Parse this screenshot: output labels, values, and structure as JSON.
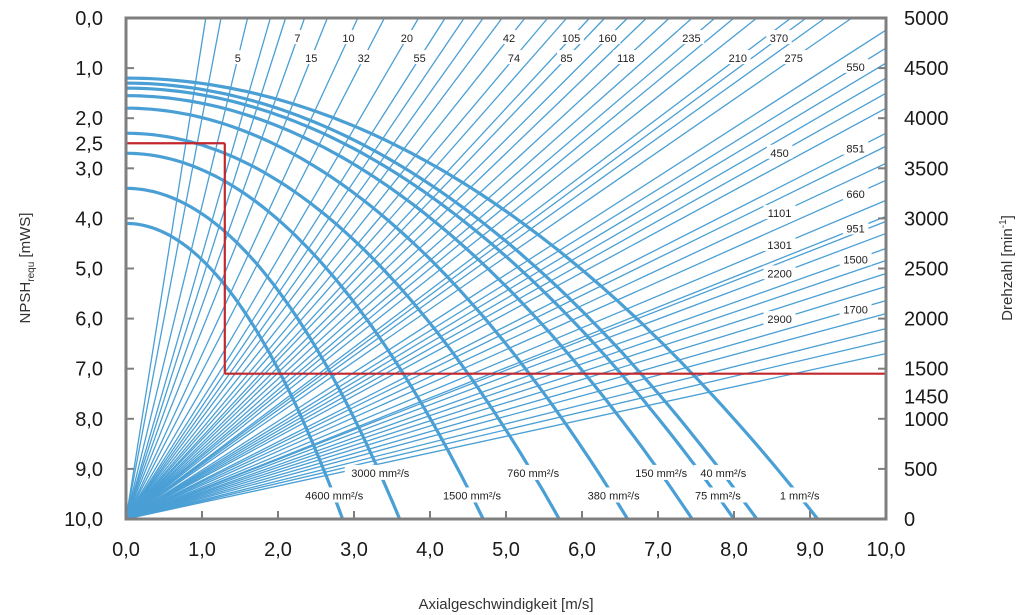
{
  "chart_data": {
    "type": "line",
    "xlabel": "Axialgeschwindigkeit [m/s]",
    "ylabel_left": {
      "main": "NPSH",
      "sub": "requ",
      "tail": " [mWS]"
    },
    "ylabel_right": {
      "main": "Drehzahl [min",
      "sup": "-1",
      "tail": "]"
    },
    "xlim": [
      0,
      10
    ],
    "ylim_left": [
      10,
      0
    ],
    "ylim_right": [
      0,
      5000
    ],
    "x_ticks": [
      "0,0",
      "1,0",
      "2,0",
      "3,0",
      "4,0",
      "5,0",
      "6,0",
      "7,0",
      "8,0",
      "9,0",
      "10,0"
    ],
    "y_left_ticks": [
      "0,0",
      "1,0",
      "2,0",
      "3,0",
      "4,0",
      "5,0",
      "6,0",
      "7,0",
      "8,0",
      "9,0",
      "10,0"
    ],
    "y_right_ticks": [
      "5000",
      "4500",
      "4000",
      "3500",
      "3000",
      "2500",
      "2000",
      "1500",
      "1000",
      "500",
      "0"
    ],
    "viscosity_curves": [
      {
        "name": "4600 mm²/s",
        "npsh0": 5.9,
        "x_at_10": 2.85
      },
      {
        "name": "3000 mm²/s",
        "npsh0": 6.6,
        "x_at_10": 3.6
      },
      {
        "name": "1500 mm²/s",
        "npsh0": 7.3,
        "x_at_10": 4.7
      },
      {
        "name": "760 mm²/s",
        "npsh0": 7.7,
        "x_at_10": 5.7
      },
      {
        "name": "380 mm²/s",
        "npsh0": 8.2,
        "x_at_10": 6.6
      },
      {
        "name": "150 mm²/s",
        "npsh0": 8.45,
        "x_at_10": 7.45
      },
      {
        "name": "75 mm²/s",
        "npsh0": 8.6,
        "x_at_10": 8.0
      },
      {
        "name": "40 mm²/s",
        "npsh0": 8.7,
        "x_at_10": 8.3
      },
      {
        "name": "1 mm²/s",
        "npsh0": 8.8,
        "x_at_10": 9.1
      }
    ],
    "rpm_rays_top": [
      {
        "label": "5",
        "x_at_top": 1.6
      },
      {
        "label": "7",
        "x_at_top": 2.35
      },
      {
        "label": "15",
        "x_at_top": 2.65
      },
      {
        "label": "10",
        "x_at_top": 3.05
      },
      {
        "label": "32",
        "x_at_top": 3.4
      },
      {
        "label": "20",
        "x_at_top": 3.85
      },
      {
        "label": "55",
        "x_at_top": 4.2
      },
      {
        "label": "42",
        "x_at_top": 5.25
      },
      {
        "label": "74",
        "x_at_top": 5.55
      },
      {
        "label": "105",
        "x_at_top": 6.1
      },
      {
        "label": "85",
        "x_at_top": 6.3
      },
      {
        "label": "160",
        "x_at_top": 6.6
      },
      {
        "label": "118",
        "x_at_top": 7.15
      },
      {
        "label": "235",
        "x_at_top": 7.75
      },
      {
        "label": "210",
        "x_at_top": 8.75
      },
      {
        "label": "370",
        "x_at_top": 8.95
      },
      {
        "label": "275",
        "x_at_top": 9.55
      }
    ],
    "rpm_rays_right": [
      {
        "label": "550",
        "rpm_at_right": 4700
      },
      {
        "label": "450",
        "rpm_at_right": 4250
      },
      {
        "label": "851",
        "rpm_at_right": 3850
      },
      {
        "label": "1101",
        "rpm_at_right": 3550
      },
      {
        "label": "660",
        "rpm_at_right": 3380
      },
      {
        "label": "1301",
        "rpm_at_right": 3180
      },
      {
        "label": "951",
        "rpm_at_right": 3020
      },
      {
        "label": "2200",
        "rpm_at_right": 2850
      },
      {
        "label": "1500",
        "rpm_at_right": 2700
      },
      {
        "label": "2900",
        "rpm_at_right": 2320
      },
      {
        "label": "1700",
        "rpm_at_right": 2180
      }
    ],
    "background_rays_top": [
      1.05,
      1.25,
      1.9,
      2.1,
      4.45,
      4.7,
      4.95,
      5.8,
      6.85,
      7.45,
      8.0,
      8.3,
      9.2
    ],
    "background_rays_right": [
      4880,
      4550,
      4400,
      4100,
      3720,
      2970,
      2580,
      2450,
      2050,
      1900,
      1780,
      1650
    ],
    "operating_point": {
      "npsh": 2.5,
      "npsh_label": "2,5",
      "velocity": 1.3,
      "rpm": 1450,
      "rpm_label": "1450"
    },
    "colors": {
      "curves": "#4a9fd5",
      "highlight": "#c1272d",
      "frame": "#7f7f7f"
    }
  }
}
